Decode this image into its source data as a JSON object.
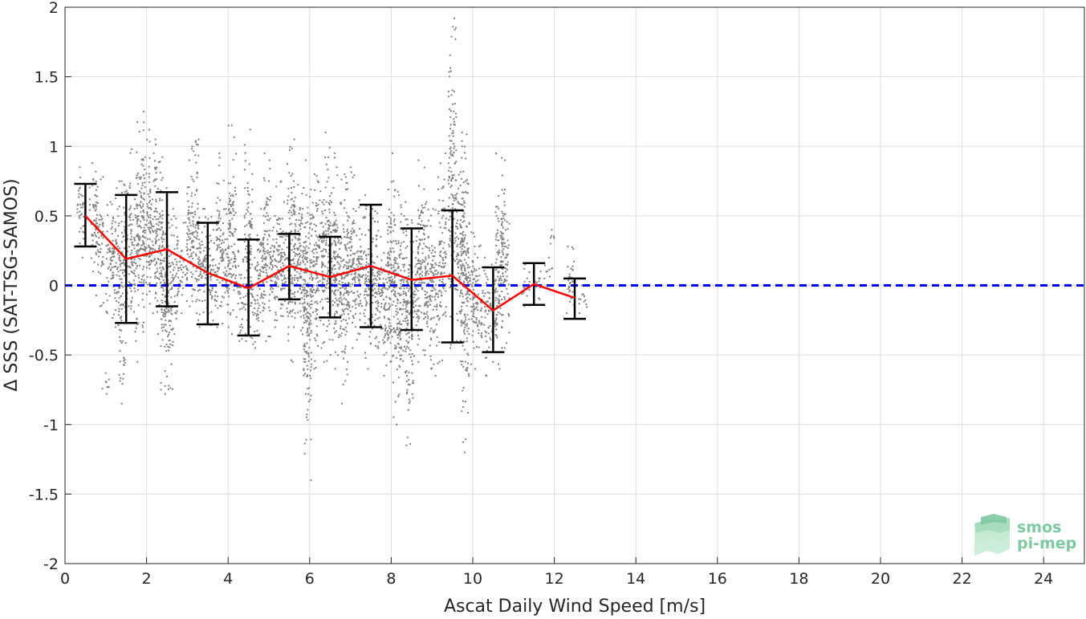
{
  "chart_data": {
    "type": "scatter",
    "xlabel": "Ascat Daily Wind Speed [m/s]",
    "ylabel": "Δ SSS (SAT-TSG-SAMOS)",
    "xlim": [
      0,
      25
    ],
    "ylim": [
      -2,
      2
    ],
    "x_ticks": [
      0,
      2,
      4,
      6,
      8,
      10,
      12,
      14,
      16,
      18,
      20,
      22,
      24
    ],
    "y_ticks": [
      -2,
      -1.5,
      -1,
      -0.5,
      0,
      0.5,
      1,
      1.5,
      2
    ],
    "y_tick_labels": [
      "-2",
      "-1.5",
      "-1",
      "-0.5",
      "0",
      "0.5",
      "1",
      "1.5",
      "2"
    ],
    "grid": true,
    "colors": {
      "scatter": "#808080",
      "mean_line": "#ff0000",
      "zero_line": "#0000ff",
      "error_bars": "#000000",
      "grid": "#dedede"
    },
    "zero_line_y": 0,
    "binned_stats": {
      "x": [
        0.5,
        1.5,
        2.5,
        3.5,
        4.5,
        5.5,
        6.5,
        7.5,
        8.5,
        9.5,
        10.5,
        11.5,
        12.5
      ],
      "mean": [
        0.5,
        0.19,
        0.26,
        0.09,
        -0.02,
        0.14,
        0.06,
        0.14,
        0.04,
        0.07,
        -0.18,
        0.01,
        -0.09
      ],
      "lower": [
        0.28,
        -0.27,
        -0.15,
        -0.28,
        -0.36,
        -0.1,
        -0.23,
        -0.3,
        -0.32,
        -0.41,
        -0.48,
        -0.14,
        -0.24
      ],
      "upper": [
        0.73,
        0.65,
        0.67,
        0.45,
        0.33,
        0.37,
        0.35,
        0.58,
        0.41,
        0.54,
        0.13,
        0.16,
        0.05
      ]
    },
    "scatter_columns": [
      {
        "x": 0.4,
        "y_min": 0.2,
        "y_max": 0.85,
        "center": 0.52
      },
      {
        "x": 0.7,
        "y_min": 0.1,
        "y_max": 0.88,
        "center": 0.45
      },
      {
        "x": 0.85,
        "y_min": -0.15,
        "y_max": 0.78,
        "center": 0.35
      },
      {
        "x": 1.0,
        "y_min": -0.78,
        "y_max": -0.63,
        "center": -0.7
      },
      {
        "x": 1.1,
        "y_min": -0.2,
        "y_max": 0.6,
        "center": 0.1
      },
      {
        "x": 1.25,
        "y_min": -0.3,
        "y_max": 0.7,
        "center": 0.15
      },
      {
        "x": 1.4,
        "y_min": -0.85,
        "y_max": 0.75,
        "center": 0.15
      },
      {
        "x": 1.55,
        "y_min": -0.15,
        "y_max": 0.98,
        "center": 0.25
      },
      {
        "x": 1.7,
        "y_min": -0.4,
        "y_max": 0.62,
        "center": 0.1
      },
      {
        "x": 1.85,
        "y_min": -0.55,
        "y_max": 1.25,
        "center": 0.25
      },
      {
        "x": 2.0,
        "y_min": -0.3,
        "y_max": 1.12,
        "center": 0.35
      },
      {
        "x": 2.15,
        "y_min": -0.2,
        "y_max": 0.95,
        "center": 0.3
      },
      {
        "x": 2.3,
        "y_min": -0.35,
        "y_max": 1.05,
        "center": 0.3
      },
      {
        "x": 2.45,
        "y_min": -0.75,
        "y_max": 0.7,
        "center": 0.2
      },
      {
        "x": 2.55,
        "y_min": -0.78,
        "y_max": 0.45,
        "center": 0.1
      },
      {
        "x": 2.7,
        "y_min": -0.35,
        "y_max": 0.55,
        "center": 0.05
      },
      {
        "x": 2.9,
        "y_min": -0.2,
        "y_max": 0.45,
        "center": 0.15
      },
      {
        "x": 3.05,
        "y_min": -0.15,
        "y_max": 0.9,
        "center": 0.2
      },
      {
        "x": 3.2,
        "y_min": -0.2,
        "y_max": 1.05,
        "center": 0.15
      },
      {
        "x": 3.35,
        "y_min": -0.3,
        "y_max": 0.55,
        "center": 0.1
      },
      {
        "x": 3.5,
        "y_min": -0.2,
        "y_max": 0.55,
        "center": 0.05
      },
      {
        "x": 3.65,
        "y_min": -0.3,
        "y_max": 0.4,
        "center": 0.05
      },
      {
        "x": 3.8,
        "y_min": -0.15,
        "y_max": 0.95,
        "center": 0.05
      },
      {
        "x": 3.95,
        "y_min": -0.3,
        "y_max": 0.55,
        "center": -0.05
      },
      {
        "x": 4.1,
        "y_min": -0.35,
        "y_max": 1.15,
        "center": 0.0
      },
      {
        "x": 4.3,
        "y_min": -0.4,
        "y_max": 0.25,
        "center": -0.05
      },
      {
        "x": 4.5,
        "y_min": -0.4,
        "y_max": 1.12,
        "center": -0.05
      },
      {
        "x": 4.65,
        "y_min": -0.45,
        "y_max": 0.2,
        "center": -0.05
      },
      {
        "x": 4.8,
        "y_min": -0.35,
        "y_max": 0.55,
        "center": 0.0
      },
      {
        "x": 4.95,
        "y_min": -0.4,
        "y_max": 0.95,
        "center": 0.05
      },
      {
        "x": 5.1,
        "y_min": -0.25,
        "y_max": 0.5,
        "center": 0.05
      },
      {
        "x": 5.25,
        "y_min": -0.3,
        "y_max": 0.75,
        "center": 0.15
      },
      {
        "x": 5.4,
        "y_min": -0.35,
        "y_max": 0.6,
        "center": 0.15
      },
      {
        "x": 5.55,
        "y_min": -0.55,
        "y_max": 1.05,
        "center": 0.15
      },
      {
        "x": 5.7,
        "y_min": -0.3,
        "y_max": 0.75,
        "center": 0.1
      },
      {
        "x": 5.85,
        "y_min": -0.6,
        "y_max": 0.9,
        "center": 0.15
      },
      {
        "x": 5.95,
        "y_min": -1.4,
        "y_max": 0.65,
        "center": 0.05
      },
      {
        "x": 6.1,
        "y_min": -0.6,
        "y_max": 0.8,
        "center": 0.1
      },
      {
        "x": 6.25,
        "y_min": -0.45,
        "y_max": 0.75,
        "center": 0.05
      },
      {
        "x": 6.4,
        "y_min": -0.55,
        "y_max": 1.1,
        "center": 0.1
      },
      {
        "x": 6.55,
        "y_min": -0.5,
        "y_max": 0.95,
        "center": 0.1
      },
      {
        "x": 6.7,
        "y_min": -0.6,
        "y_max": 0.85,
        "center": 0.05
      },
      {
        "x": 6.85,
        "y_min": -0.85,
        "y_max": 0.8,
        "center": 0.05
      },
      {
        "x": 7.0,
        "y_min": -0.55,
        "y_max": 0.85,
        "center": 0.1
      },
      {
        "x": 7.15,
        "y_min": -0.45,
        "y_max": 0.55,
        "center": 0.1
      },
      {
        "x": 7.3,
        "y_min": -0.3,
        "y_max": 0.65,
        "center": 0.15
      },
      {
        "x": 7.45,
        "y_min": -0.6,
        "y_max": 0.55,
        "center": 0.15
      },
      {
        "x": 7.6,
        "y_min": -0.45,
        "y_max": 0.55,
        "center": 0.1
      },
      {
        "x": 7.75,
        "y_min": -0.5,
        "y_max": 0.35,
        "center": 0.0
      },
      {
        "x": 7.9,
        "y_min": -0.65,
        "y_max": 0.45,
        "center": 0.0
      },
      {
        "x": 8.0,
        "y_min": -0.55,
        "y_max": 0.95,
        "center": 0.05
      },
      {
        "x": 8.15,
        "y_min": -1.0,
        "y_max": 0.75,
        "center": -0.05
      },
      {
        "x": 8.3,
        "y_min": -0.65,
        "y_max": 0.5,
        "center": 0.0
      },
      {
        "x": 8.45,
        "y_min": -1.15,
        "y_max": 0.6,
        "center": 0.05
      },
      {
        "x": 8.6,
        "y_min": -0.55,
        "y_max": 0.45,
        "center": 0.05
      },
      {
        "x": 8.75,
        "y_min": -0.5,
        "y_max": 0.9,
        "center": 0.05
      },
      {
        "x": 8.9,
        "y_min": -0.6,
        "y_max": 0.6,
        "center": 0.05
      },
      {
        "x": 9.05,
        "y_min": -0.65,
        "y_max": 0.55,
        "center": 0.0
      },
      {
        "x": 9.25,
        "y_min": -0.55,
        "y_max": 0.95,
        "center": 0.05
      },
      {
        "x": 9.5,
        "y_min": -0.45,
        "y_max": 1.92,
        "center": 0.1
      },
      {
        "x": 9.7,
        "y_min": -0.4,
        "y_max": 1.0,
        "center": 0.1
      },
      {
        "x": 9.8,
        "y_min": -1.2,
        "y_max": 1.1,
        "center": 0.0
      },
      {
        "x": 9.95,
        "y_min": -0.65,
        "y_max": 0.45,
        "center": -0.05
      },
      {
        "x": 10.1,
        "y_min": -0.6,
        "y_max": 0.35,
        "center": -0.15
      },
      {
        "x": 10.3,
        "y_min": -0.65,
        "y_max": 0.2,
        "center": -0.2
      },
      {
        "x": 10.5,
        "y_min": -0.55,
        "y_max": 0.15,
        "center": -0.2
      },
      {
        "x": 10.65,
        "y_min": -0.6,
        "y_max": 0.95,
        "center": -0.15
      },
      {
        "x": 10.8,
        "y_min": -0.45,
        "y_max": 0.9,
        "center": -0.2
      },
      {
        "x": 11.3,
        "y_min": -0.15,
        "y_max": 0.15,
        "center": 0.0
      },
      {
        "x": 11.6,
        "y_min": -0.1,
        "y_max": 0.1,
        "center": 0.0
      },
      {
        "x": 11.85,
        "y_min": 0.05,
        "y_max": 0.2,
        "center": 0.1
      },
      {
        "x": 12.0,
        "y_min": 0.3,
        "y_max": 0.4,
        "center": 0.35
      },
      {
        "x": 12.4,
        "y_min": -0.2,
        "y_max": 0.28,
        "center": -0.05
      },
      {
        "x": 12.7,
        "y_min": -0.2,
        "y_max": 0.0,
        "center": -0.1
      }
    ]
  },
  "logo": {
    "line1": "smos",
    "line2": "pi-mep"
  }
}
